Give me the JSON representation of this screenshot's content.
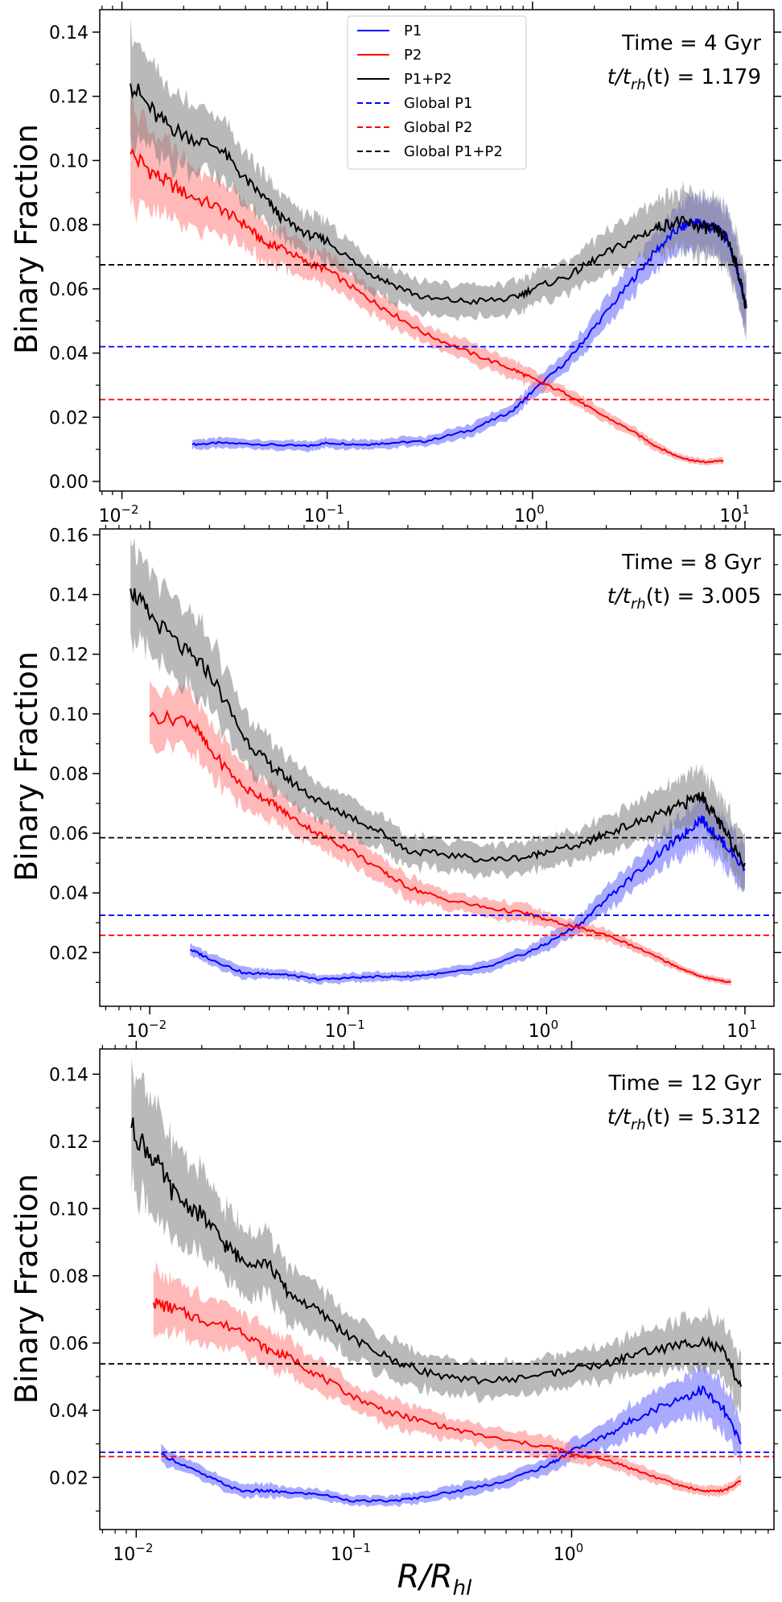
{
  "figure": {
    "xlabel_main": "R/R",
    "xlabel_sub": "hl",
    "colors": {
      "p1": "#0000ff",
      "p2": "#ff0000",
      "p12": "#000000",
      "p1_band": "#6464ff",
      "p2_band": "#ff8080",
      "p12_band": "#808080"
    }
  },
  "legend": {
    "title": "",
    "items": [
      {
        "label": "P1",
        "style": "solid",
        "color": "#0000ff"
      },
      {
        "label": "P2",
        "style": "solid",
        "color": "#ff0000"
      },
      {
        "label": "P1+P2",
        "style": "solid",
        "color": "#000000"
      },
      {
        "label": "Global P1",
        "style": "dashed",
        "color": "#0000ff"
      },
      {
        "label": "Global P2",
        "style": "dashed",
        "color": "#ff0000"
      },
      {
        "label": "Global P1+P2",
        "style": "dashed",
        "color": "#000000"
      }
    ]
  },
  "chart_data": [
    {
      "type": "line",
      "title": "",
      "ylabel": "Binary Fraction",
      "xlabel": "",
      "xscale": "log",
      "xlim": [
        0.0078,
        15
      ],
      "ylim": [
        -0.003,
        0.147
      ],
      "yticks": [
        0.0,
        0.02,
        0.04,
        0.06,
        0.08,
        0.1,
        0.12,
        0.14
      ],
      "ytick_labels": [
        "0.00",
        "0.02",
        "0.04",
        "0.06",
        "0.08",
        "0.10",
        "0.12",
        "0.14"
      ],
      "xticks": [
        0.01,
        0.1,
        1,
        10
      ],
      "xtick_labels": [
        "10",
        "10",
        "10",
        "10"
      ],
      "xtick_exponents": [
        "−2",
        "−1",
        "0",
        "1"
      ],
      "annotation_time": "Time = 4 Gyr",
      "annotation_ratio_prefix": "t/t",
      "annotation_ratio_sub": "rh",
      "annotation_ratio_suffix": "(t) = 1.179",
      "globals": {
        "P1": 0.042,
        "P2": 0.0255,
        "P1+P2": 0.0675
      },
      "series": [
        {
          "name": "P1",
          "x": [
            0.022,
            0.03,
            0.05,
            0.08,
            0.1,
            0.15,
            0.2,
            0.3,
            0.5,
            0.8,
            1.0,
            1.5,
            2.0,
            3.0,
            4.0,
            5.0,
            6.0,
            7.0,
            8.0,
            9.0,
            10.0,
            11.0
          ],
          "y": [
            0.0115,
            0.012,
            0.0115,
            0.011,
            0.012,
            0.0115,
            0.012,
            0.0125,
            0.016,
            0.022,
            0.028,
            0.038,
            0.048,
            0.062,
            0.072,
            0.078,
            0.081,
            0.08,
            0.078,
            0.075,
            0.065,
            0.054
          ],
          "err": [
            0.0015,
            0.0015,
            0.0015,
            0.0015,
            0.0015,
            0.0015,
            0.0015,
            0.0015,
            0.002,
            0.002,
            0.0025,
            0.003,
            0.004,
            0.005,
            0.006,
            0.007,
            0.008,
            0.008,
            0.008,
            0.008,
            0.008,
            0.008
          ]
        },
        {
          "name": "P2",
          "x": [
            0.011,
            0.015,
            0.02,
            0.03,
            0.04,
            0.05,
            0.06,
            0.08,
            0.1,
            0.15,
            0.2,
            0.3,
            0.5,
            0.8,
            1.0,
            1.5,
            2.0,
            3.0,
            4.0,
            5.0,
            6.0,
            7.0,
            8.5
          ],
          "y": [
            0.102,
            0.095,
            0.09,
            0.085,
            0.08,
            0.074,
            0.073,
            0.068,
            0.066,
            0.058,
            0.053,
            0.046,
            0.04,
            0.035,
            0.032,
            0.027,
            0.022,
            0.016,
            0.011,
            0.008,
            0.0065,
            0.006,
            0.0065
          ],
          "err": [
            0.017,
            0.012,
            0.01,
            0.008,
            0.007,
            0.006,
            0.006,
            0.005,
            0.005,
            0.004,
            0.004,
            0.003,
            0.003,
            0.003,
            0.0025,
            0.002,
            0.002,
            0.0015,
            0.0015,
            0.001,
            0.001,
            0.001,
            0.001
          ]
        },
        {
          "name": "P1+P2",
          "x": [
            0.011,
            0.015,
            0.02,
            0.03,
            0.04,
            0.05,
            0.06,
            0.08,
            0.1,
            0.15,
            0.2,
            0.3,
            0.5,
            0.8,
            1.0,
            1.5,
            2.0,
            3.0,
            4.0,
            5.0,
            6.0,
            7.0,
            8.0,
            9.0,
            10.0,
            11.0
          ],
          "y": [
            0.124,
            0.113,
            0.108,
            0.104,
            0.094,
            0.088,
            0.082,
            0.077,
            0.075,
            0.066,
            0.062,
            0.057,
            0.056,
            0.057,
            0.06,
            0.064,
            0.069,
            0.075,
            0.079,
            0.081,
            0.08,
            0.079,
            0.078,
            0.075,
            0.066,
            0.054
          ],
          "err": [
            0.017,
            0.013,
            0.011,
            0.009,
            0.008,
            0.007,
            0.007,
            0.006,
            0.006,
            0.005,
            0.005,
            0.005,
            0.005,
            0.005,
            0.005,
            0.005,
            0.006,
            0.007,
            0.008,
            0.009,
            0.009,
            0.009,
            0.009,
            0.009,
            0.009,
            0.009
          ]
        }
      ]
    },
    {
      "type": "line",
      "title": "",
      "ylabel": "Binary Fraction",
      "xlabel": "",
      "xscale": "log",
      "xlim": [
        0.0056,
        14
      ],
      "ylim": [
        0.002,
        0.162
      ],
      "yticks": [
        0.02,
        0.04,
        0.06,
        0.08,
        0.1,
        0.12,
        0.14,
        0.16
      ],
      "ytick_labels": [
        "0.02",
        "0.04",
        "0.06",
        "0.08",
        "0.10",
        "0.12",
        "0.14",
        "0.16"
      ],
      "xticks": [
        0.01,
        0.1,
        1,
        10
      ],
      "xtick_labels": [
        "10",
        "10",
        "10",
        "10"
      ],
      "xtick_exponents": [
        "−2",
        "−1",
        "0",
        "1"
      ],
      "annotation_time": "Time = 8 Gyr",
      "annotation_ratio_prefix": "t/t",
      "annotation_ratio_sub": "rh",
      "annotation_ratio_suffix": "(t) = 3.005",
      "globals": {
        "P1": 0.0325,
        "P2": 0.0258,
        "P1+P2": 0.0585
      },
      "series": [
        {
          "name": "P1",
          "x": [
            0.016,
            0.02,
            0.03,
            0.04,
            0.05,
            0.07,
            0.1,
            0.15,
            0.2,
            0.3,
            0.5,
            0.8,
            1.0,
            1.5,
            2.0,
            3.0,
            4.0,
            5.0,
            6.0,
            7.0,
            8.0,
            10.0
          ],
          "y": [
            0.021,
            0.018,
            0.013,
            0.013,
            0.0125,
            0.011,
            0.0115,
            0.012,
            0.012,
            0.013,
            0.015,
            0.02,
            0.023,
            0.03,
            0.038,
            0.048,
            0.055,
            0.06,
            0.065,
            0.06,
            0.056,
            0.048
          ],
          "err": [
            0.002,
            0.002,
            0.002,
            0.0015,
            0.0015,
            0.0015,
            0.0015,
            0.0015,
            0.0015,
            0.0015,
            0.002,
            0.002,
            0.0025,
            0.003,
            0.004,
            0.005,
            0.006,
            0.007,
            0.008,
            0.008,
            0.008,
            0.008
          ]
        },
        {
          "name": "P2",
          "x": [
            0.01,
            0.016,
            0.02,
            0.03,
            0.04,
            0.05,
            0.07,
            0.1,
            0.15,
            0.2,
            0.3,
            0.5,
            0.8,
            1.0,
            1.5,
            2.0,
            3.0,
            4.0,
            5.0,
            6.0,
            7.0,
            8.5
          ],
          "y": [
            0.099,
            0.098,
            0.088,
            0.075,
            0.071,
            0.066,
            0.06,
            0.055,
            0.047,
            0.042,
            0.038,
            0.035,
            0.033,
            0.031,
            0.028,
            0.026,
            0.021,
            0.017,
            0.014,
            0.012,
            0.011,
            0.01
          ],
          "err": [
            0.01,
            0.01,
            0.009,
            0.007,
            0.006,
            0.005,
            0.005,
            0.005,
            0.004,
            0.004,
            0.003,
            0.003,
            0.003,
            0.0025,
            0.002,
            0.002,
            0.0015,
            0.0015,
            0.001,
            0.001,
            0.001,
            0.001
          ]
        },
        {
          "name": "P1+P2",
          "x": [
            0.008,
            0.01,
            0.015,
            0.02,
            0.03,
            0.04,
            0.05,
            0.07,
            0.1,
            0.15,
            0.2,
            0.3,
            0.5,
            0.8,
            1.0,
            1.5,
            2.0,
            3.0,
            4.0,
            5.0,
            6.0,
            7.0,
            8.0,
            10.0
          ],
          "y": [
            0.142,
            0.133,
            0.121,
            0.114,
            0.092,
            0.083,
            0.078,
            0.071,
            0.066,
            0.06,
            0.054,
            0.053,
            0.051,
            0.052,
            0.054,
            0.056,
            0.06,
            0.064,
            0.067,
            0.07,
            0.073,
            0.066,
            0.06,
            0.05
          ],
          "err": [
            0.015,
            0.014,
            0.013,
            0.012,
            0.009,
            0.008,
            0.007,
            0.007,
            0.006,
            0.006,
            0.005,
            0.005,
            0.005,
            0.005,
            0.005,
            0.005,
            0.006,
            0.007,
            0.008,
            0.009,
            0.009,
            0.009,
            0.009,
            0.009
          ]
        }
      ]
    },
    {
      "type": "line",
      "title": "",
      "ylabel": "Binary Fraction",
      "xlabel": "R/R_hl",
      "xscale": "log",
      "xlim": [
        0.0068,
        8.5
      ],
      "ylim": [
        0.0045,
        0.1475
      ],
      "yticks": [
        0.02,
        0.04,
        0.06,
        0.08,
        0.1,
        0.12,
        0.14
      ],
      "ytick_labels": [
        "0.02",
        "0.04",
        "0.06",
        "0.08",
        "0.10",
        "0.12",
        "0.14"
      ],
      "xticks": [
        0.01,
        0.1,
        1
      ],
      "xtick_labels": [
        "10",
        "10",
        "10"
      ],
      "xtick_exponents": [
        "−2",
        "−1",
        "0"
      ],
      "annotation_time": "Time = 12 Gyr",
      "annotation_ratio_prefix": "t/t",
      "annotation_ratio_sub": "rh",
      "annotation_ratio_suffix": "(t) = 5.312",
      "globals": {
        "P1": 0.0275,
        "P2": 0.0262,
        "P1+P2": 0.0538
      },
      "series": [
        {
          "name": "P1",
          "x": [
            0.013,
            0.02,
            0.03,
            0.04,
            0.05,
            0.07,
            0.1,
            0.15,
            0.2,
            0.3,
            0.5,
            0.8,
            1.0,
            1.5,
            2.0,
            3.0,
            4.0,
            5.0,
            6.0
          ],
          "y": [
            0.027,
            0.021,
            0.016,
            0.016,
            0.0155,
            0.015,
            0.013,
            0.013,
            0.014,
            0.016,
            0.019,
            0.024,
            0.028,
            0.033,
            0.038,
            0.043,
            0.046,
            0.04,
            0.03
          ],
          "err": [
            0.0025,
            0.002,
            0.002,
            0.002,
            0.0015,
            0.0015,
            0.0015,
            0.0015,
            0.0015,
            0.002,
            0.002,
            0.0025,
            0.003,
            0.004,
            0.005,
            0.006,
            0.007,
            0.007,
            0.006
          ]
        },
        {
          "name": "P2",
          "x": [
            0.012,
            0.015,
            0.02,
            0.03,
            0.04,
            0.05,
            0.07,
            0.1,
            0.15,
            0.2,
            0.3,
            0.5,
            0.8,
            1.0,
            1.5,
            2.0,
            3.0,
            4.0,
            5.0,
            6.0
          ],
          "y": [
            0.072,
            0.07,
            0.067,
            0.064,
            0.058,
            0.056,
            0.05,
            0.044,
            0.039,
            0.037,
            0.034,
            0.031,
            0.029,
            0.027,
            0.025,
            0.022,
            0.018,
            0.016,
            0.016,
            0.019
          ],
          "err": [
            0.009,
            0.008,
            0.007,
            0.006,
            0.006,
            0.005,
            0.005,
            0.004,
            0.004,
            0.004,
            0.003,
            0.003,
            0.003,
            0.0025,
            0.002,
            0.002,
            0.0015,
            0.0015,
            0.0015,
            0.0015
          ]
        },
        {
          "name": "P1+P2",
          "x": [
            0.0095,
            0.012,
            0.015,
            0.02,
            0.025,
            0.03,
            0.04,
            0.05,
            0.07,
            0.1,
            0.15,
            0.2,
            0.3,
            0.5,
            0.8,
            1.0,
            1.5,
            2.0,
            3.0,
            4.0,
            5.0,
            6.0
          ],
          "y": [
            0.124,
            0.115,
            0.104,
            0.098,
            0.09,
            0.085,
            0.084,
            0.075,
            0.069,
            0.061,
            0.055,
            0.052,
            0.049,
            0.049,
            0.051,
            0.052,
            0.054,
            0.057,
            0.059,
            0.061,
            0.057,
            0.047
          ],
          "err": [
            0.018,
            0.016,
            0.014,
            0.012,
            0.011,
            0.01,
            0.009,
            0.008,
            0.007,
            0.006,
            0.006,
            0.005,
            0.005,
            0.005,
            0.005,
            0.005,
            0.005,
            0.006,
            0.007,
            0.008,
            0.008,
            0.008
          ]
        }
      ]
    }
  ]
}
